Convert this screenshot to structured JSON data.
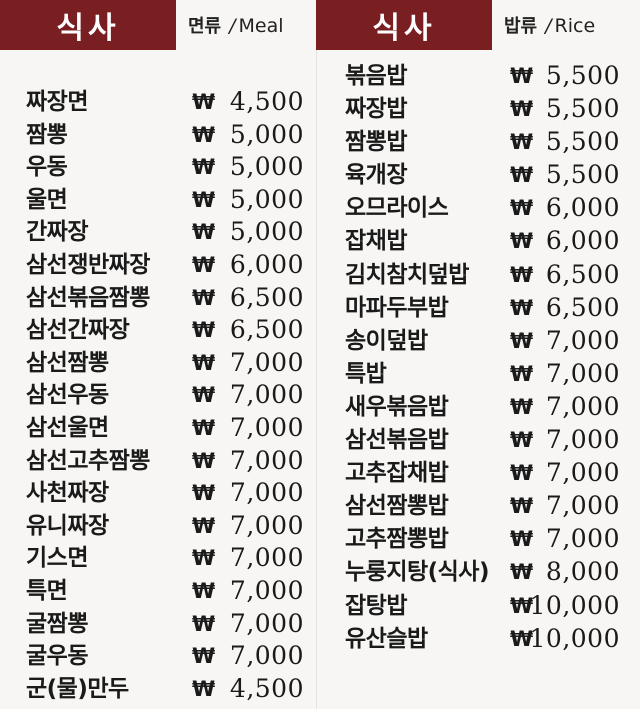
{
  "left": {
    "badge": "식사",
    "category_kr": "면류",
    "category_sep": "/",
    "category_en": "Meal",
    "items": [
      {
        "name": "짜장면",
        "currency": "₩",
        "price": "4,500"
      },
      {
        "name": "짬뽕",
        "currency": "₩",
        "price": "5,000"
      },
      {
        "name": "우동",
        "currency": "₩",
        "price": "5,000"
      },
      {
        "name": "울면",
        "currency": "₩",
        "price": "5,000"
      },
      {
        "name": "간짜장",
        "currency": "₩",
        "price": "5,000"
      },
      {
        "name": "삼선쟁반짜장",
        "currency": "₩",
        "price": "6,000"
      },
      {
        "name": "삼선볶음짬뽕",
        "currency": "₩",
        "price": "6,500"
      },
      {
        "name": "삼선간짜장",
        "currency": "₩",
        "price": "6,500"
      },
      {
        "name": "삼선짬뽕",
        "currency": "₩",
        "price": "7,000"
      },
      {
        "name": "삼선우동",
        "currency": "₩",
        "price": "7,000"
      },
      {
        "name": "삼선울면",
        "currency": "₩",
        "price": "7,000"
      },
      {
        "name": "삼선고추짬뽕",
        "currency": "₩",
        "price": "7,000"
      },
      {
        "name": "사천짜장",
        "currency": "₩",
        "price": "7,000"
      },
      {
        "name": "유니짜장",
        "currency": "₩",
        "price": "7,000"
      },
      {
        "name": "기스면",
        "currency": "₩",
        "price": "7,000"
      },
      {
        "name": "특면",
        "currency": "₩",
        "price": "7,000"
      },
      {
        "name": "굴짬뽕",
        "currency": "₩",
        "price": "7,000"
      },
      {
        "name": "굴우동",
        "currency": "₩",
        "price": "7,000"
      },
      {
        "name": "군(물)만두",
        "currency": "₩",
        "price": "4,500"
      }
    ]
  },
  "right": {
    "badge": "식사",
    "category_kr": "밥류",
    "category_sep": "/",
    "category_en": "Rice",
    "items": [
      {
        "name": "볶음밥",
        "currency": "₩",
        "price": "5,500"
      },
      {
        "name": "짜장밥",
        "currency": "₩",
        "price": "5,500"
      },
      {
        "name": "짬뽕밥",
        "currency": "₩",
        "price": "5,500"
      },
      {
        "name": "육개장",
        "currency": "₩",
        "price": "5,500"
      },
      {
        "name": "오므라이스",
        "currency": "₩",
        "price": "6,000"
      },
      {
        "name": "잡채밥",
        "currency": "₩",
        "price": "6,000"
      },
      {
        "name": "김치참치덮밥",
        "currency": "₩",
        "price": "6,500"
      },
      {
        "name": "마파두부밥",
        "currency": "₩",
        "price": "6,500"
      },
      {
        "name": "송이덮밥",
        "currency": "₩",
        "price": "7,000"
      },
      {
        "name": "특밥",
        "currency": "₩",
        "price": "7,000"
      },
      {
        "name": "새우볶음밥",
        "currency": "₩",
        "price": "7,000"
      },
      {
        "name": "삼선볶음밥",
        "currency": "₩",
        "price": "7,000"
      },
      {
        "name": "고추잡채밥",
        "currency": "₩",
        "price": "7,000"
      },
      {
        "name": "삼선짬뽕밥",
        "currency": "₩",
        "price": "7,000"
      },
      {
        "name": "고추짬뽕밥",
        "currency": "₩",
        "price": "7,000"
      },
      {
        "name": "누룽지탕(식사)",
        "currency": "₩",
        "price": "8,000"
      },
      {
        "name": "잡탕밥",
        "currency": "₩",
        "price": "10,000"
      },
      {
        "name": "유산슬밥",
        "currency": "₩",
        "price": "10,000"
      }
    ]
  },
  "colors": {
    "badge_bg": "#7a1f21",
    "badge_text": "#ffffff",
    "background": "#f7f6f4",
    "text": "#1a1a1a"
  }
}
